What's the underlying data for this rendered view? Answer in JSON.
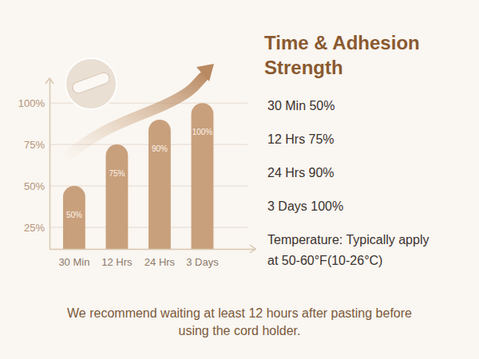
{
  "chart_data": {
    "type": "bar",
    "title": "Time & Adhesion Strength",
    "categories": [
      "30 Min",
      "12 Hrs",
      "24 Hrs",
      "3 Days"
    ],
    "values": [
      50,
      75,
      90,
      100
    ],
    "value_labels": [
      "50%",
      "75%",
      "90%",
      "100%"
    ],
    "color": "#c9a07c",
    "ylim": [
      12,
      115
    ],
    "yticks": [
      {
        "value": 25,
        "label": "25%"
      },
      {
        "value": 50,
        "label": "50%"
      },
      {
        "value": 75,
        "label": "75%"
      },
      {
        "value": 100,
        "label": "100%"
      }
    ],
    "grid": true,
    "data_labels": true,
    "annotations": [
      "30 Min 50%",
      "12 Hrs 75%",
      "24 Hrs 90%",
      "3 Days 100%",
      "Temperature: Typically apply at 50-60°F(10-26°C)"
    ],
    "footnote": "We recommend waiting at least 12 hours after pasting before using the cord holder."
  }
}
